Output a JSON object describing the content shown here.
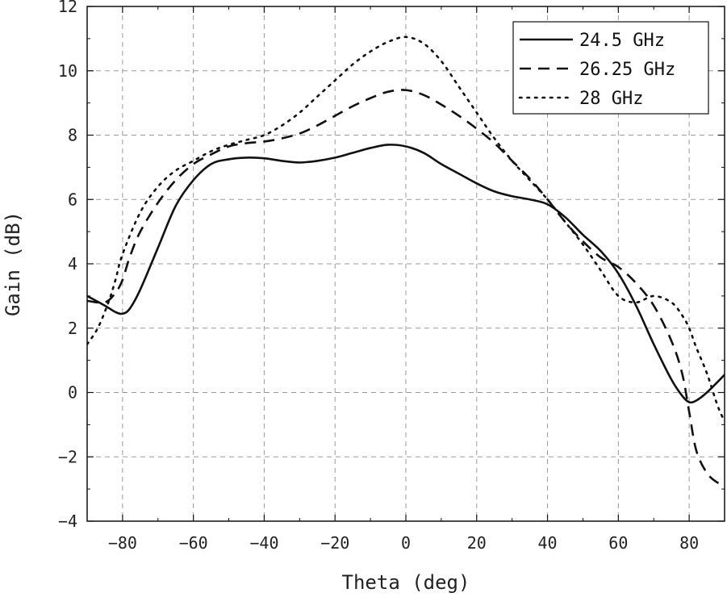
{
  "chart_data": {
    "type": "line",
    "xlabel": "Theta (deg)",
    "ylabel": "Gain (dB)",
    "xlim": [
      -90,
      90
    ],
    "ylim": [
      -4,
      12
    ],
    "xticks": [
      -80,
      -60,
      -40,
      -20,
      0,
      20,
      40,
      60,
      80
    ],
    "yticks": [
      -4,
      -2,
      0,
      2,
      4,
      6,
      8,
      10,
      12
    ],
    "xtick_labels": [
      "−80",
      "−60",
      "−40",
      "−20",
      "0",
      "20",
      "40",
      "60",
      "80"
    ],
    "ytick_labels": [
      "−4",
      "−2",
      "0",
      "2",
      "4",
      "6",
      "8",
      "10",
      "12"
    ],
    "grid": true,
    "legend_position": "top-right",
    "series": [
      {
        "name": "24.5 GHz",
        "style": "solid",
        "color": "#111111",
        "x": [
          -90,
          -85,
          -82,
          -80,
          -78,
          -75,
          -70,
          -65,
          -60,
          -55,
          -50,
          -45,
          -40,
          -35,
          -30,
          -25,
          -20,
          -15,
          -10,
          -5,
          0,
          5,
          10,
          15,
          20,
          25,
          30,
          35,
          40,
          45,
          50,
          55,
          60,
          65,
          70,
          75,
          78,
          80,
          82,
          85,
          90
        ],
        "y": [
          3.0,
          2.7,
          2.5,
          2.45,
          2.6,
          3.2,
          4.5,
          5.8,
          6.6,
          7.1,
          7.25,
          7.3,
          7.28,
          7.2,
          7.15,
          7.2,
          7.3,
          7.45,
          7.6,
          7.7,
          7.65,
          7.45,
          7.1,
          6.8,
          6.5,
          6.25,
          6.1,
          6.0,
          5.85,
          5.45,
          4.9,
          4.4,
          3.7,
          2.7,
          1.5,
          0.4,
          -0.1,
          -0.3,
          -0.25,
          0.0,
          0.55
        ]
      },
      {
        "name": "26.25 GHz",
        "style": "dashed",
        "color": "#111111",
        "x": [
          -90,
          -85,
          -82,
          -80,
          -78,
          -75,
          -70,
          -65,
          -60,
          -55,
          -50,
          -45,
          -40,
          -35,
          -30,
          -25,
          -20,
          -15,
          -10,
          -5,
          0,
          5,
          10,
          15,
          20,
          25,
          30,
          35,
          40,
          45,
          50,
          55,
          60,
          65,
          70,
          75,
          78,
          80,
          82,
          85,
          88,
          90
        ],
        "y": [
          2.85,
          2.8,
          3.1,
          3.5,
          4.2,
          5.0,
          5.9,
          6.6,
          7.1,
          7.4,
          7.65,
          7.75,
          7.8,
          7.9,
          8.05,
          8.3,
          8.6,
          8.9,
          9.15,
          9.35,
          9.4,
          9.25,
          8.95,
          8.6,
          8.2,
          7.75,
          7.2,
          6.65,
          6.0,
          5.3,
          4.7,
          4.2,
          3.9,
          3.4,
          2.7,
          1.6,
          0.6,
          -0.6,
          -1.8,
          -2.5,
          -2.8,
          -2.85
        ]
      },
      {
        "name": "28 GHz",
        "style": "dotted",
        "color": "#111111",
        "x": [
          -90,
          -87,
          -84,
          -82,
          -80,
          -75,
          -70,
          -65,
          -60,
          -55,
          -50,
          -45,
          -40,
          -35,
          -30,
          -25,
          -20,
          -15,
          -10,
          -5,
          0,
          5,
          10,
          15,
          20,
          25,
          30,
          35,
          40,
          45,
          50,
          55,
          60,
          65,
          70,
          75,
          78,
          80,
          82,
          85,
          88,
          90
        ],
        "y": [
          1.5,
          2.0,
          2.8,
          3.5,
          4.3,
          5.6,
          6.4,
          6.9,
          7.2,
          7.5,
          7.7,
          7.85,
          8.0,
          8.3,
          8.7,
          9.2,
          9.7,
          10.2,
          10.6,
          10.9,
          11.05,
          10.85,
          10.3,
          9.5,
          8.7,
          7.9,
          7.2,
          6.6,
          6.0,
          5.3,
          4.6,
          3.8,
          3.0,
          2.8,
          3.0,
          2.8,
          2.4,
          2.0,
          1.4,
          0.6,
          -0.4,
          -0.9
        ]
      }
    ]
  }
}
